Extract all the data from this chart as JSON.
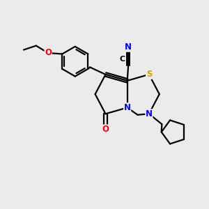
{
  "bg_color": "#ebebeb",
  "bond_color": "#000000",
  "bond_width": 1.6,
  "atom_colors": {
    "N": "#0000ff",
    "O": "#ff0000",
    "S": "#ccaa00",
    "C": "#000000"
  },
  "figsize": [
    3.0,
    3.0
  ],
  "dpi": 100
}
